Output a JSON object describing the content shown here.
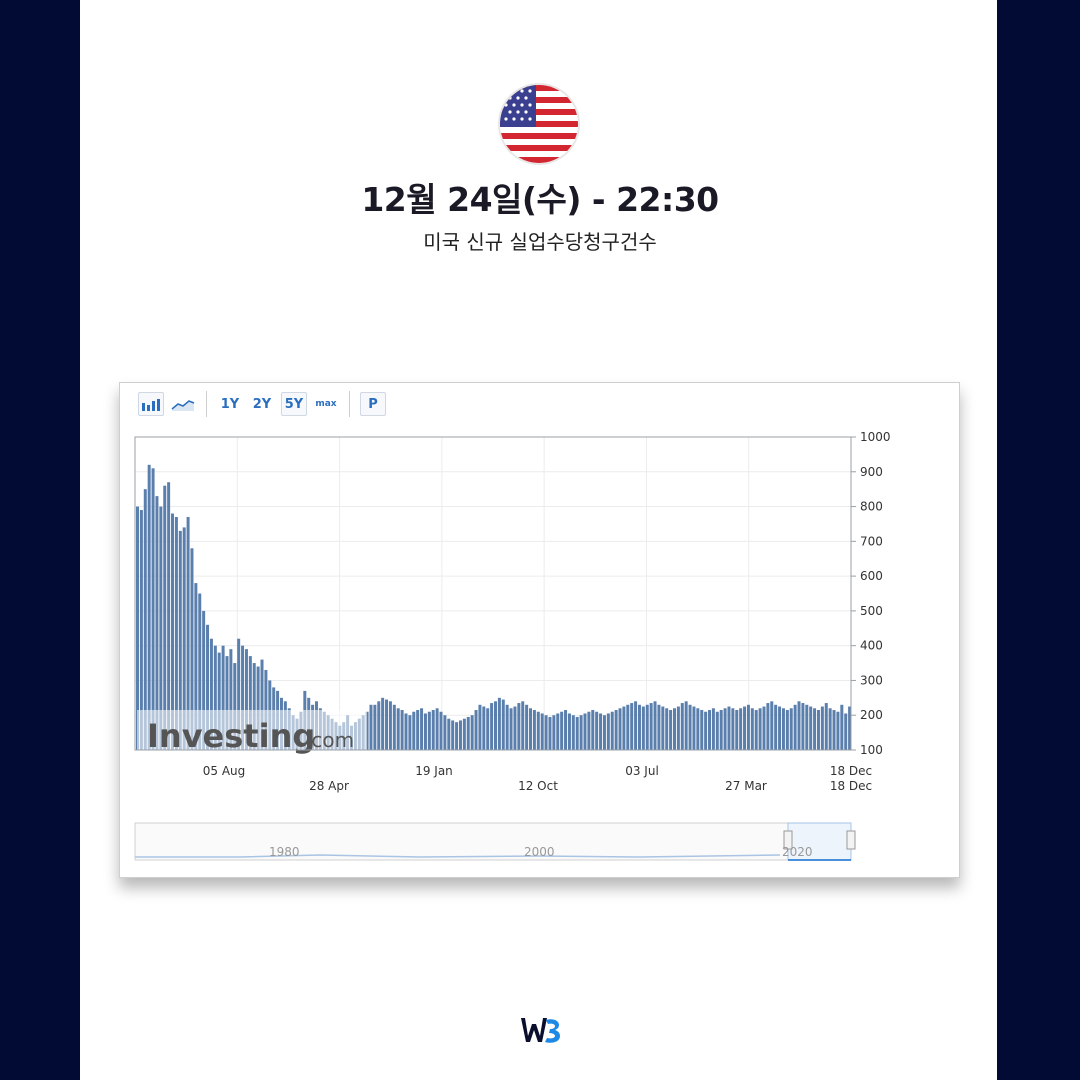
{
  "header": {
    "flag_icon": "us-flag-icon",
    "title": "12월 24일(수) - 22:30",
    "subtitle": "미국 신규 실업수당청구건수"
  },
  "toolbar": {
    "buttons": [
      "1Y",
      "2Y",
      "5Y",
      "max"
    ],
    "active": "5Y",
    "print_label": "P",
    "bar_chart_icon": "bar-chart-icon",
    "line_chart_icon": "line-chart-icon"
  },
  "chart_data": {
    "type": "bar",
    "ylim": [
      100,
      1000
    ],
    "y_ticks": [
      100,
      200,
      300,
      400,
      500,
      600,
      700,
      800,
      900,
      1000
    ],
    "x_labels_row1": [
      "05 Aug",
      "19 Jan",
      "03 Jul",
      "18 Dec"
    ],
    "x_labels_row2": [
      "28 Apr",
      "12 Oct",
      "27 Mar",
      "18 Dec"
    ],
    "watermark": "Investing.com",
    "navigator_labels": [
      "1980",
      "2000",
      "2020"
    ],
    "bar_color": "#5b7fad",
    "values": [
      800,
      790,
      850,
      920,
      910,
      830,
      800,
      860,
      870,
      780,
      770,
      730,
      740,
      770,
      680,
      580,
      550,
      500,
      460,
      420,
      400,
      380,
      400,
      370,
      390,
      350,
      420,
      400,
      390,
      370,
      350,
      340,
      360,
      330,
      300,
      280,
      270,
      250,
      240,
      220,
      200,
      190,
      210,
      270,
      250,
      230,
      240,
      220,
      210,
      200,
      190,
      180,
      170,
      180,
      200,
      170,
      180,
      190,
      200,
      210,
      230,
      230,
      240,
      250,
      245,
      240,
      230,
      220,
      215,
      205,
      200,
      210,
      215,
      220,
      205,
      210,
      215,
      220,
      210,
      200,
      190,
      185,
      180,
      185,
      190,
      195,
      200,
      215,
      230,
      225,
      220,
      235,
      240,
      250,
      245,
      230,
      220,
      225,
      235,
      240,
      230,
      220,
      215,
      210,
      205,
      200,
      195,
      200,
      205,
      210,
      215,
      205,
      200,
      195,
      200,
      205,
      210,
      215,
      210,
      205,
      200,
      205,
      210,
      215,
      220,
      225,
      230,
      235,
      240,
      230,
      225,
      230,
      235,
      240,
      230,
      225,
      220,
      215,
      220,
      225,
      235,
      240,
      230,
      225,
      220,
      215,
      210,
      215,
      220,
      210,
      215,
      220,
      225,
      220,
      215,
      220,
      225,
      230,
      220,
      215,
      220,
      225,
      235,
      240,
      230,
      225,
      220,
      215,
      220,
      230,
      240,
      235,
      230,
      225,
      220,
      215,
      225,
      235,
      220,
      215,
      210,
      230,
      205,
      225
    ]
  },
  "footer": {
    "logo_icon": "wb-logo-icon"
  }
}
